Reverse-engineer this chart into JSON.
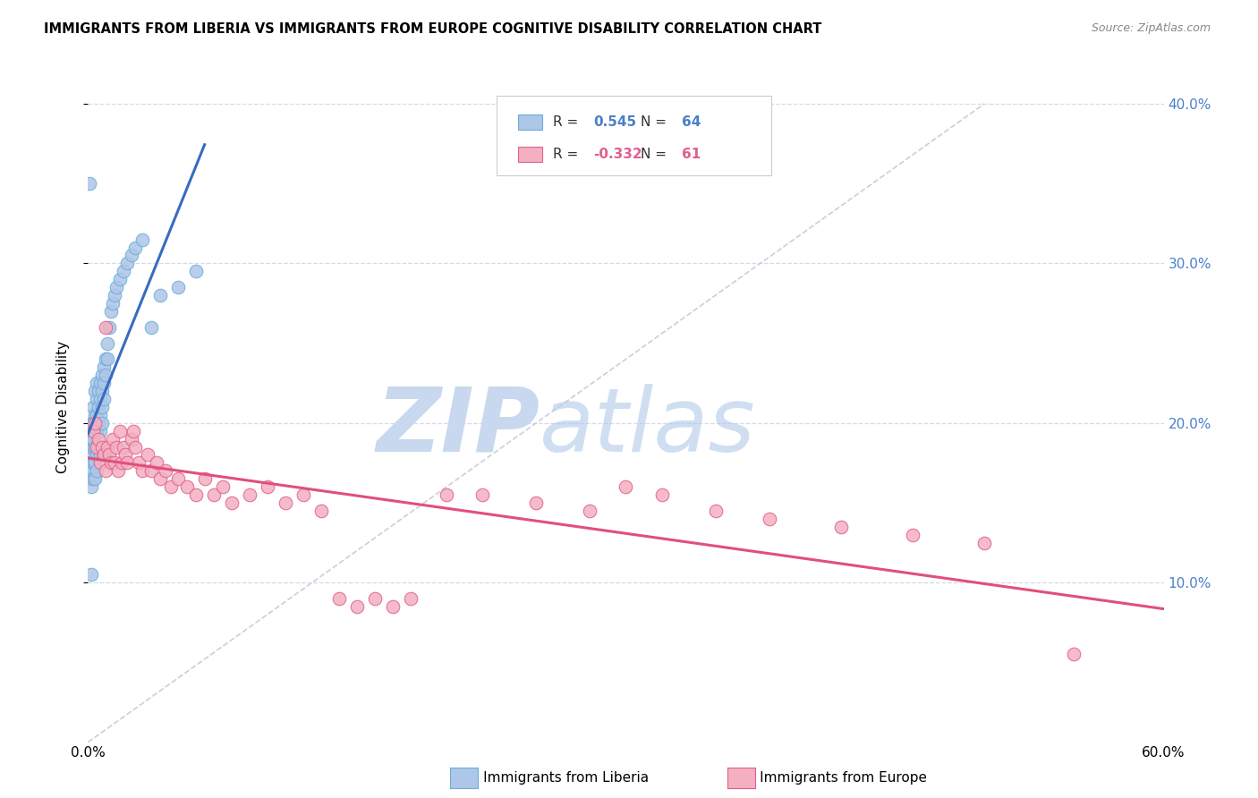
{
  "title": "IMMIGRANTS FROM LIBERIA VS IMMIGRANTS FROM EUROPE COGNITIVE DISABILITY CORRELATION CHART",
  "source": "Source: ZipAtlas.com",
  "ylabel": "Cognitive Disability",
  "xlim": [
    0.0,
    0.6
  ],
  "ylim": [
    0.0,
    0.42
  ],
  "yticks": [
    0.1,
    0.2,
    0.3,
    0.4
  ],
  "ytick_labels": [
    "10.0%",
    "20.0%",
    "30.0%",
    "40.0%"
  ],
  "xticks": [
    0.0,
    0.1,
    0.2,
    0.3,
    0.4,
    0.5,
    0.6
  ],
  "background_color": "#ffffff",
  "grid_color": "#d8d8e8",
  "liberia_color": "#aec6e8",
  "liberia_edge_color": "#6aaed6",
  "europe_color": "#f4afc0",
  "europe_edge_color": "#e06090",
  "liberia_line_color": "#3a6bbf",
  "europe_line_color": "#e0507a",
  "ref_line_color": "#c8c8d8",
  "watermark_color_zip": "#c8d8ee",
  "watermark_color_atlas": "#b0c8e8",
  "tick_label_color": "#4a80c8",
  "R_liberia": 0.545,
  "N_liberia": 64,
  "R_europe": -0.332,
  "N_europe": 61,
  "liberia_x": [
    0.001,
    0.001,
    0.001,
    0.002,
    0.002,
    0.002,
    0.002,
    0.002,
    0.003,
    0.003,
    0.003,
    0.003,
    0.003,
    0.003,
    0.003,
    0.004,
    0.004,
    0.004,
    0.004,
    0.004,
    0.004,
    0.005,
    0.005,
    0.005,
    0.005,
    0.005,
    0.005,
    0.006,
    0.006,
    0.006,
    0.006,
    0.007,
    0.007,
    0.007,
    0.007,
    0.007,
    0.008,
    0.008,
    0.008,
    0.008,
    0.009,
    0.009,
    0.009,
    0.01,
    0.01,
    0.011,
    0.011,
    0.012,
    0.013,
    0.014,
    0.015,
    0.016,
    0.018,
    0.02,
    0.022,
    0.024,
    0.026,
    0.03,
    0.035,
    0.04,
    0.05,
    0.06,
    0.001,
    0.002
  ],
  "liberia_y": [
    0.175,
    0.185,
    0.165,
    0.19,
    0.18,
    0.17,
    0.16,
    0.2,
    0.195,
    0.185,
    0.175,
    0.165,
    0.21,
    0.2,
    0.19,
    0.205,
    0.195,
    0.185,
    0.175,
    0.22,
    0.165,
    0.215,
    0.205,
    0.195,
    0.18,
    0.225,
    0.17,
    0.22,
    0.21,
    0.2,
    0.185,
    0.225,
    0.215,
    0.205,
    0.195,
    0.18,
    0.23,
    0.22,
    0.21,
    0.2,
    0.235,
    0.225,
    0.215,
    0.24,
    0.23,
    0.25,
    0.24,
    0.26,
    0.27,
    0.275,
    0.28,
    0.285,
    0.29,
    0.295,
    0.3,
    0.305,
    0.31,
    0.315,
    0.26,
    0.28,
    0.285,
    0.295,
    0.35,
    0.105
  ],
  "europe_x": [
    0.003,
    0.004,
    0.005,
    0.006,
    0.007,
    0.008,
    0.009,
    0.01,
    0.011,
    0.012,
    0.013,
    0.014,
    0.015,
    0.016,
    0.017,
    0.018,
    0.019,
    0.02,
    0.021,
    0.022,
    0.024,
    0.026,
    0.028,
    0.03,
    0.033,
    0.035,
    0.038,
    0.04,
    0.043,
    0.046,
    0.05,
    0.055,
    0.06,
    0.065,
    0.07,
    0.075,
    0.08,
    0.09,
    0.1,
    0.11,
    0.12,
    0.13,
    0.14,
    0.15,
    0.16,
    0.17,
    0.18,
    0.2,
    0.22,
    0.25,
    0.28,
    0.3,
    0.32,
    0.35,
    0.38,
    0.42,
    0.46,
    0.5,
    0.55,
    0.01,
    0.025
  ],
  "europe_y": [
    0.195,
    0.2,
    0.185,
    0.19,
    0.175,
    0.185,
    0.18,
    0.17,
    0.185,
    0.18,
    0.175,
    0.19,
    0.175,
    0.185,
    0.17,
    0.195,
    0.175,
    0.185,
    0.18,
    0.175,
    0.19,
    0.185,
    0.175,
    0.17,
    0.18,
    0.17,
    0.175,
    0.165,
    0.17,
    0.16,
    0.165,
    0.16,
    0.155,
    0.165,
    0.155,
    0.16,
    0.15,
    0.155,
    0.16,
    0.15,
    0.155,
    0.145,
    0.09,
    0.085,
    0.09,
    0.085,
    0.09,
    0.155,
    0.155,
    0.15,
    0.145,
    0.16,
    0.155,
    0.145,
    0.14,
    0.135,
    0.13,
    0.125,
    0.055,
    0.26,
    0.195
  ]
}
